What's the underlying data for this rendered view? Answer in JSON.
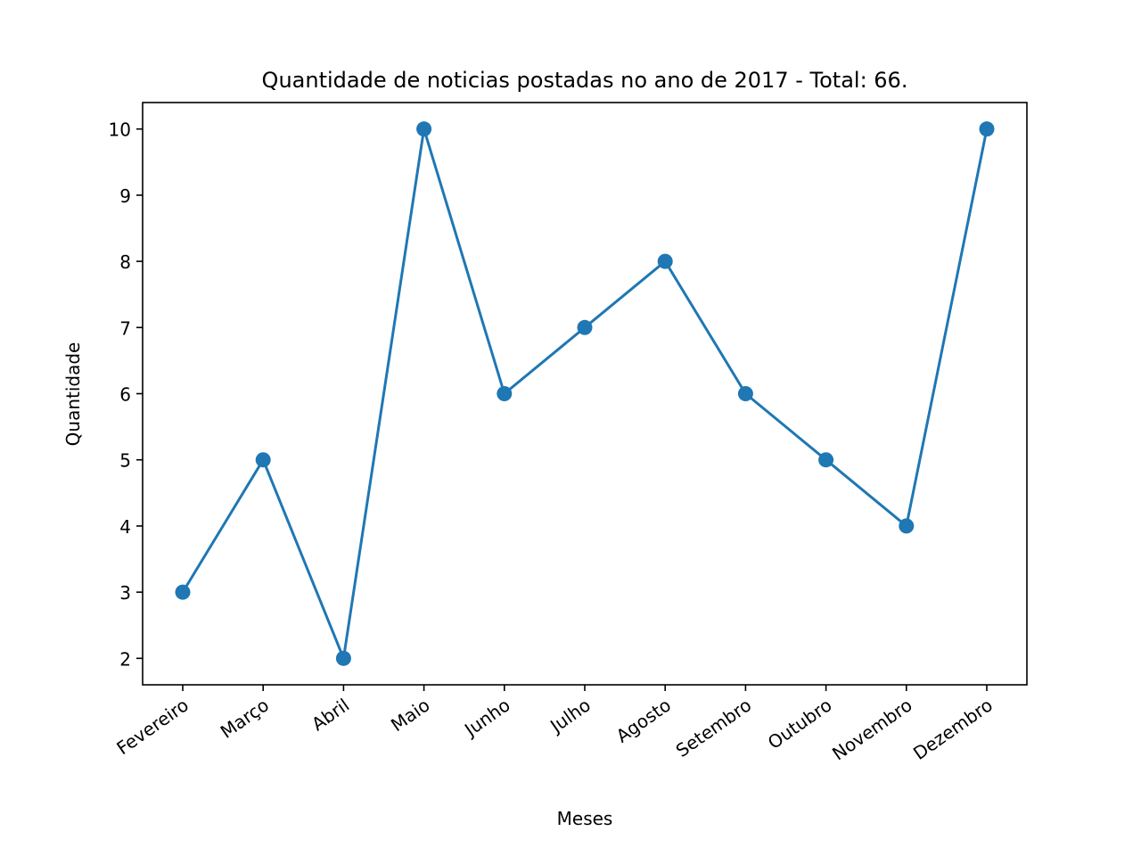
{
  "chart_data": {
    "type": "line",
    "title": "Quantidade de noticias postadas no ano de 2017 - Total: 66.",
    "xlabel": "Meses",
    "ylabel": "Quantidade",
    "categories": [
      "Fevereiro",
      "Março",
      "Abril",
      "Maio",
      "Junho",
      "Julho",
      "Agosto",
      "Setembro",
      "Outubro",
      "Novembro",
      "Dezembro"
    ],
    "series": [
      {
        "values": [
          3,
          5,
          2,
          10,
          6,
          7,
          8,
          6,
          5,
          4,
          10
        ]
      }
    ],
    "ylim": [
      1.6,
      10.4
    ],
    "yticks": [
      2,
      3,
      4,
      5,
      6,
      7,
      8,
      9,
      10
    ],
    "grid": false,
    "legend": "none",
    "colors": {
      "line": "#1f77b4",
      "axes": "#000000",
      "background": "#ffffff"
    }
  }
}
